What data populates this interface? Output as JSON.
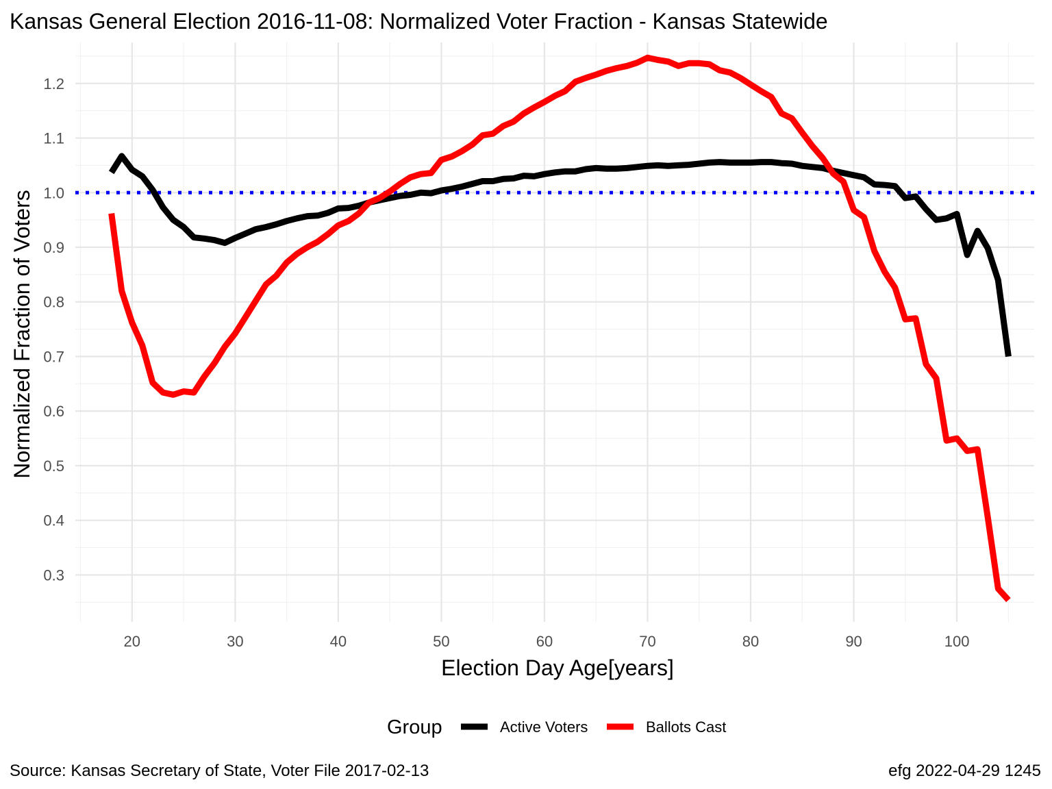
{
  "chart_data": {
    "type": "line",
    "title": "Kansas General Election 2016-11-08:  Normalized Voter Fraction - Kansas Statewide",
    "xlabel": "Election Day Age[years]",
    "ylabel": "Normalized Fraction of Voters",
    "xlim": [
      14.5,
      107.5
    ],
    "ylim": [
      0.214,
      1.275
    ],
    "x_ticks": [
      20,
      30,
      40,
      50,
      60,
      70,
      80,
      90,
      100
    ],
    "y_ticks": [
      0.3,
      0.4,
      0.5,
      0.6,
      0.7,
      0.8,
      0.9,
      1.0,
      1.1,
      1.2
    ],
    "x_tick_labels": [
      "20",
      "30",
      "40",
      "50",
      "60",
      "70",
      "80",
      "90",
      "100"
    ],
    "y_tick_labels": [
      "0.3",
      "0.4",
      "0.5",
      "0.6",
      "0.7",
      "0.8",
      "0.9",
      "1.0",
      "1.1",
      "1.2"
    ],
    "grid": true,
    "reference_line": {
      "y": 1.0,
      "color": "#0000ff",
      "style": "dotted"
    },
    "legend": {
      "title": "Group",
      "position": "bottom",
      "entries": [
        {
          "label": "Active Voters",
          "color": "#000000"
        },
        {
          "label": "Ballots Cast",
          "color": "#ff0000"
        }
      ]
    },
    "series": [
      {
        "name": "Active Voters",
        "color": "#000000",
        "x": [
          18,
          19,
          20,
          21,
          22,
          23,
          24,
          25,
          26,
          27,
          28,
          29,
          30,
          31,
          32,
          33,
          34,
          35,
          36,
          37,
          38,
          39,
          40,
          41,
          42,
          43,
          44,
          45,
          46,
          47,
          48,
          49,
          50,
          51,
          52,
          53,
          54,
          55,
          56,
          57,
          58,
          59,
          60,
          61,
          62,
          63,
          64,
          65,
          66,
          67,
          68,
          69,
          70,
          71,
          72,
          73,
          74,
          75,
          76,
          77,
          78,
          79,
          80,
          81,
          82,
          83,
          84,
          85,
          86,
          87,
          88,
          89,
          90,
          91,
          92,
          93,
          94,
          95,
          96,
          97,
          98,
          99,
          100,
          101,
          102,
          103,
          104,
          105
        ],
        "y": [
          1.037,
          1.067,
          1.042,
          1.03,
          1.005,
          0.973,
          0.95,
          0.937,
          0.918,
          0.916,
          0.913,
          0.908,
          0.917,
          0.925,
          0.933,
          0.937,
          0.942,
          0.948,
          0.953,
          0.957,
          0.958,
          0.963,
          0.971,
          0.972,
          0.976,
          0.982,
          0.986,
          0.99,
          0.994,
          0.996,
          1.0,
          0.999,
          1.004,
          1.007,
          1.011,
          1.016,
          1.021,
          1.021,
          1.025,
          1.026,
          1.031,
          1.03,
          1.034,
          1.037,
          1.039,
          1.039,
          1.043,
          1.045,
          1.044,
          1.044,
          1.045,
          1.047,
          1.049,
          1.05,
          1.049,
          1.05,
          1.051,
          1.053,
          1.055,
          1.056,
          1.055,
          1.055,
          1.055,
          1.056,
          1.056,
          1.054,
          1.053,
          1.049,
          1.047,
          1.045,
          1.04,
          1.036,
          1.032,
          1.028,
          1.015,
          1.014,
          1.012,
          0.99,
          0.993,
          0.97,
          0.95,
          0.953,
          0.961,
          0.886,
          0.93,
          0.898,
          0.84,
          0.7
        ]
      },
      {
        "name": "Ballots Cast",
        "color": "#ff0000",
        "x": [
          18,
          19,
          20,
          21,
          22,
          23,
          24,
          25,
          26,
          27,
          28,
          29,
          30,
          31,
          32,
          33,
          34,
          35,
          36,
          37,
          38,
          39,
          40,
          41,
          42,
          43,
          44,
          45,
          46,
          47,
          48,
          49,
          50,
          51,
          52,
          53,
          54,
          55,
          56,
          57,
          58,
          59,
          60,
          61,
          62,
          63,
          64,
          65,
          66,
          67,
          68,
          69,
          70,
          71,
          72,
          73,
          74,
          75,
          76,
          77,
          78,
          79,
          80,
          81,
          82,
          83,
          84,
          85,
          86,
          87,
          88,
          89,
          90,
          91,
          92,
          93,
          94,
          95,
          96,
          97,
          98,
          99,
          100,
          101,
          102,
          103,
          104,
          105
        ],
        "y": [
          0.962,
          0.82,
          0.762,
          0.72,
          0.652,
          0.634,
          0.63,
          0.636,
          0.634,
          0.663,
          0.688,
          0.718,
          0.742,
          0.772,
          0.802,
          0.832,
          0.848,
          0.872,
          0.888,
          0.9,
          0.91,
          0.924,
          0.94,
          0.948,
          0.962,
          0.982,
          0.99,
          1.002,
          1.016,
          1.028,
          1.034,
          1.036,
          1.06,
          1.066,
          1.076,
          1.088,
          1.105,
          1.108,
          1.122,
          1.13,
          1.145,
          1.156,
          1.166,
          1.177,
          1.186,
          1.203,
          1.21,
          1.216,
          1.223,
          1.228,
          1.232,
          1.238,
          1.247,
          1.243,
          1.24,
          1.232,
          1.237,
          1.237,
          1.235,
          1.224,
          1.22,
          1.21,
          1.198,
          1.186,
          1.175,
          1.145,
          1.136,
          1.11,
          1.085,
          1.063,
          1.035,
          1.02,
          0.968,
          0.955,
          0.893,
          0.855,
          0.826,
          0.768,
          0.77,
          0.686,
          0.66,
          0.546,
          0.55,
          0.527,
          0.53,
          0.405,
          0.275,
          0.254
        ]
      }
    ]
  },
  "caption": {
    "source": "Source:  Kansas Secretary of State, Voter File  2017-02-13",
    "credit": "efg 2022-04-29 1245"
  }
}
